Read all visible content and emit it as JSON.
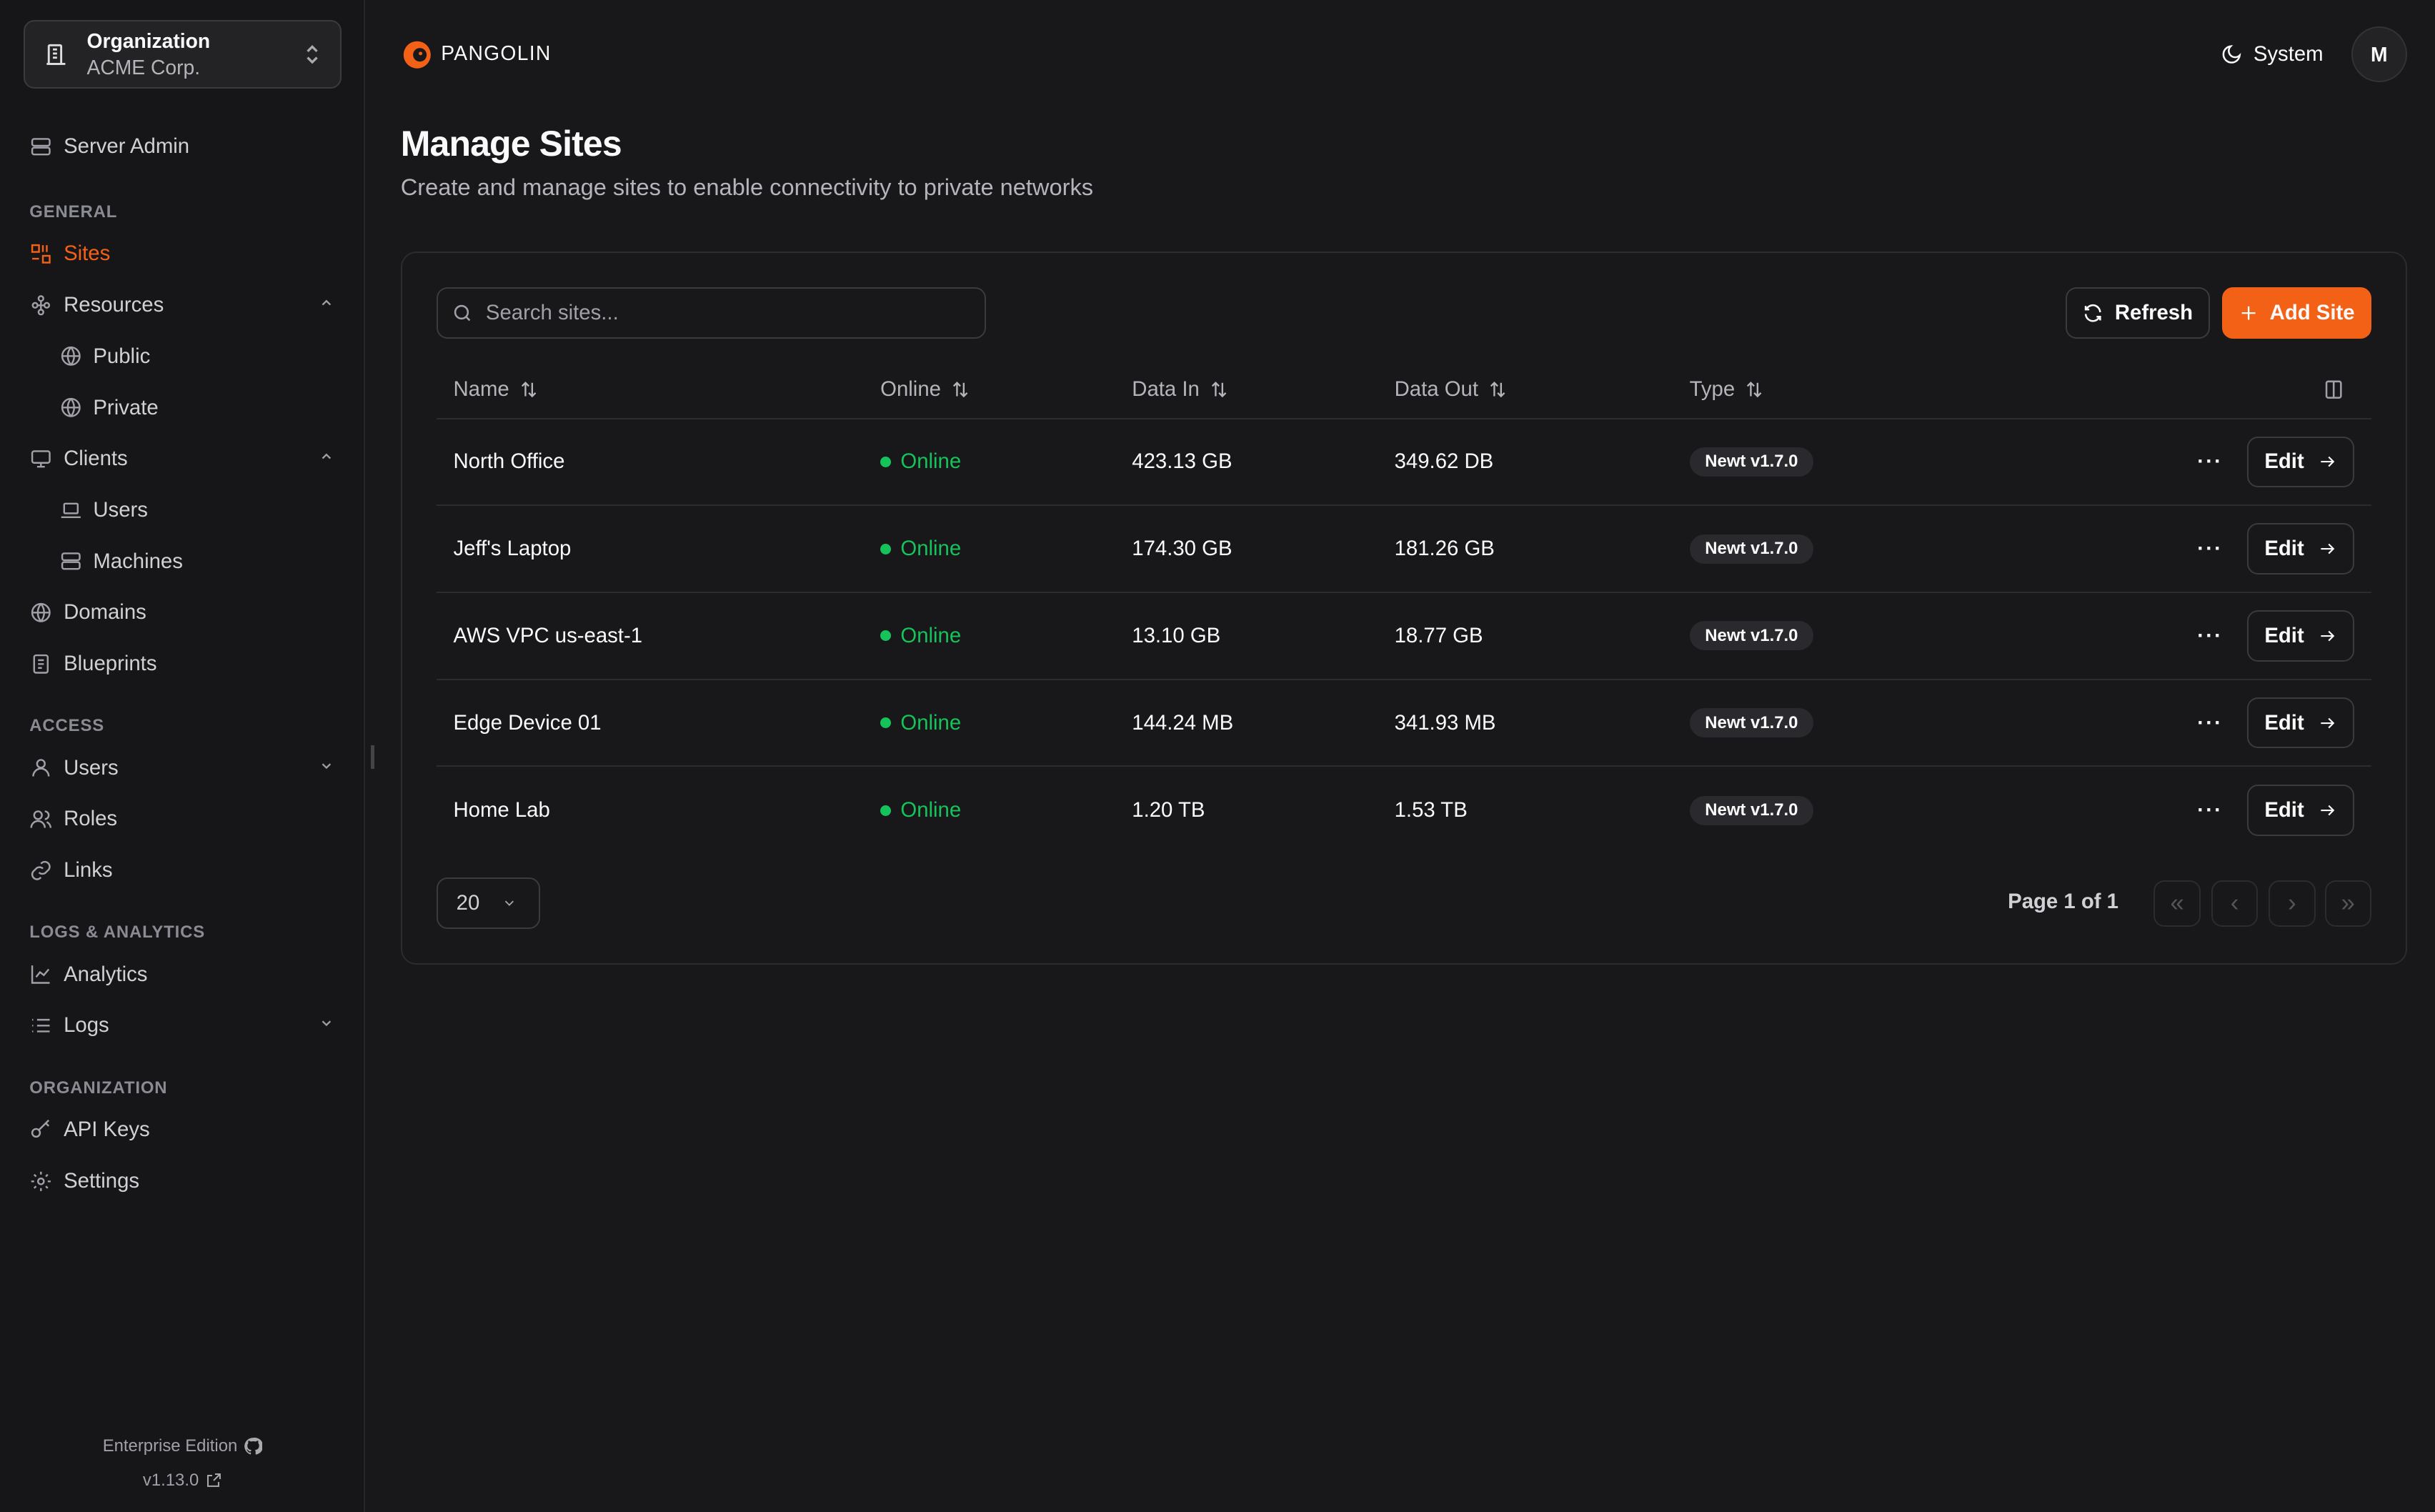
{
  "org": {
    "label": "Organization",
    "name": "ACME Corp."
  },
  "brand": {
    "name": "PANGOLIN",
    "color": "#f36117"
  },
  "header": {
    "theme_label": "System",
    "avatar_initial": "M"
  },
  "sidebar": {
    "server_admin": "Server Admin",
    "sections": {
      "general": "GENERAL",
      "access": "ACCESS",
      "logs": "LOGS & ANALYTICS",
      "organization": "ORGANIZATION"
    },
    "items": {
      "sites": "Sites",
      "resources": "Resources",
      "public": "Public",
      "private": "Private",
      "clients": "Clients",
      "users_client": "Users",
      "machines": "Machines",
      "domains": "Domains",
      "blueprints": "Blueprints",
      "users": "Users",
      "roles": "Roles",
      "links": "Links",
      "analytics": "Analytics",
      "logs": "Logs",
      "api_keys": "API Keys",
      "settings": "Settings"
    },
    "footer": {
      "edition": "Enterprise Edition",
      "version": "v1.13.0"
    }
  },
  "page": {
    "title": "Manage Sites",
    "subtitle": "Create and manage sites to enable connectivity to private networks"
  },
  "toolbar": {
    "search_placeholder": "Search sites...",
    "search_value": "",
    "refresh_label": "Refresh",
    "add_label": "Add Site"
  },
  "table": {
    "columns": [
      "Name",
      "Online",
      "Data In",
      "Data Out",
      "Type"
    ],
    "rows": [
      {
        "name": "North Office",
        "status": "Online",
        "data_in": "423.13 GB",
        "data_out": "349.62 DB",
        "type": "Newt v1.7.0",
        "edit": "Edit"
      },
      {
        "name": "Jeff's Laptop",
        "status": "Online",
        "data_in": "174.30 GB",
        "data_out": "181.26 GB",
        "type": "Newt v1.7.0",
        "edit": "Edit"
      },
      {
        "name": "AWS VPC us-east-1",
        "status": "Online",
        "data_in": "13.10 GB",
        "data_out": "18.77 GB",
        "type": "Newt v1.7.0",
        "edit": "Edit"
      },
      {
        "name": "Edge Device 01",
        "status": "Online",
        "data_in": "144.24 MB",
        "data_out": "341.93 MB",
        "type": "Newt v1.7.0",
        "edit": "Edit"
      },
      {
        "name": "Home Lab",
        "status": "Online",
        "data_in": "1.20 TB",
        "data_out": "1.53 TB",
        "type": "Newt v1.7.0",
        "edit": "Edit"
      }
    ]
  },
  "pagination": {
    "page_size": "20",
    "page_info": "Page 1 of 1"
  },
  "colors": {
    "accent": "#f36117",
    "online": "#16c25a",
    "background": "#18181b"
  }
}
